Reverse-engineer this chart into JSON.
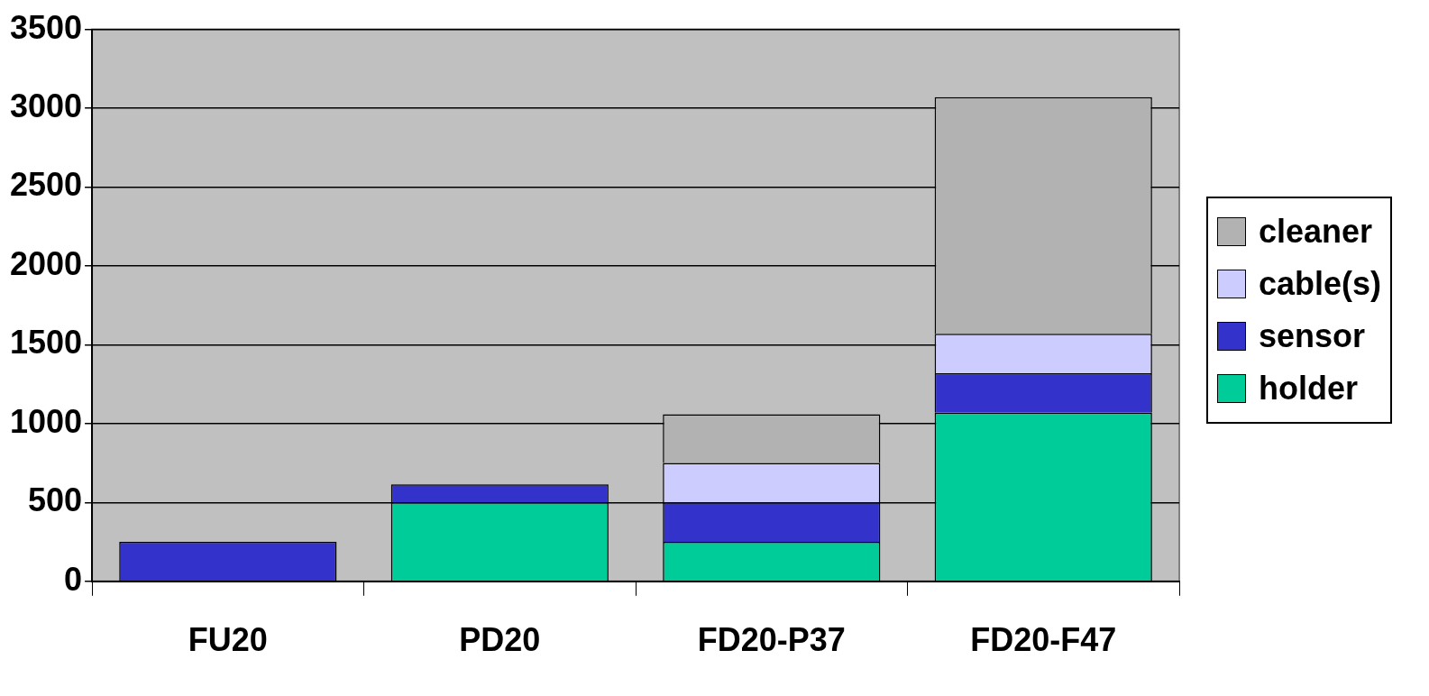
{
  "chart_data": {
    "type": "bar",
    "stacked": true,
    "categories": [
      "FU20",
      "PD20",
      "FD20-P37",
      "FD20-F47"
    ],
    "series": [
      {
        "name": "holder",
        "color": "#00cc99",
        "values": [
          null,
          500,
          250,
          1070
        ]
      },
      {
        "name": "sensor",
        "color": "#3333cc",
        "values": [
          250,
          115,
          250,
          250
        ]
      },
      {
        "name": "cable(s)",
        "color": "#ccccff",
        "values": [
          null,
          null,
          250,
          250
        ]
      },
      {
        "name": "cleaner",
        "color": "#b2b2b2",
        "values": [
          null,
          null,
          310,
          1500
        ]
      }
    ],
    "ylim": [
      0,
      3500
    ],
    "yticks": [
      0,
      500,
      1000,
      1500,
      2000,
      2500,
      3000,
      3500
    ],
    "grid": "y",
    "legend": "right"
  }
}
